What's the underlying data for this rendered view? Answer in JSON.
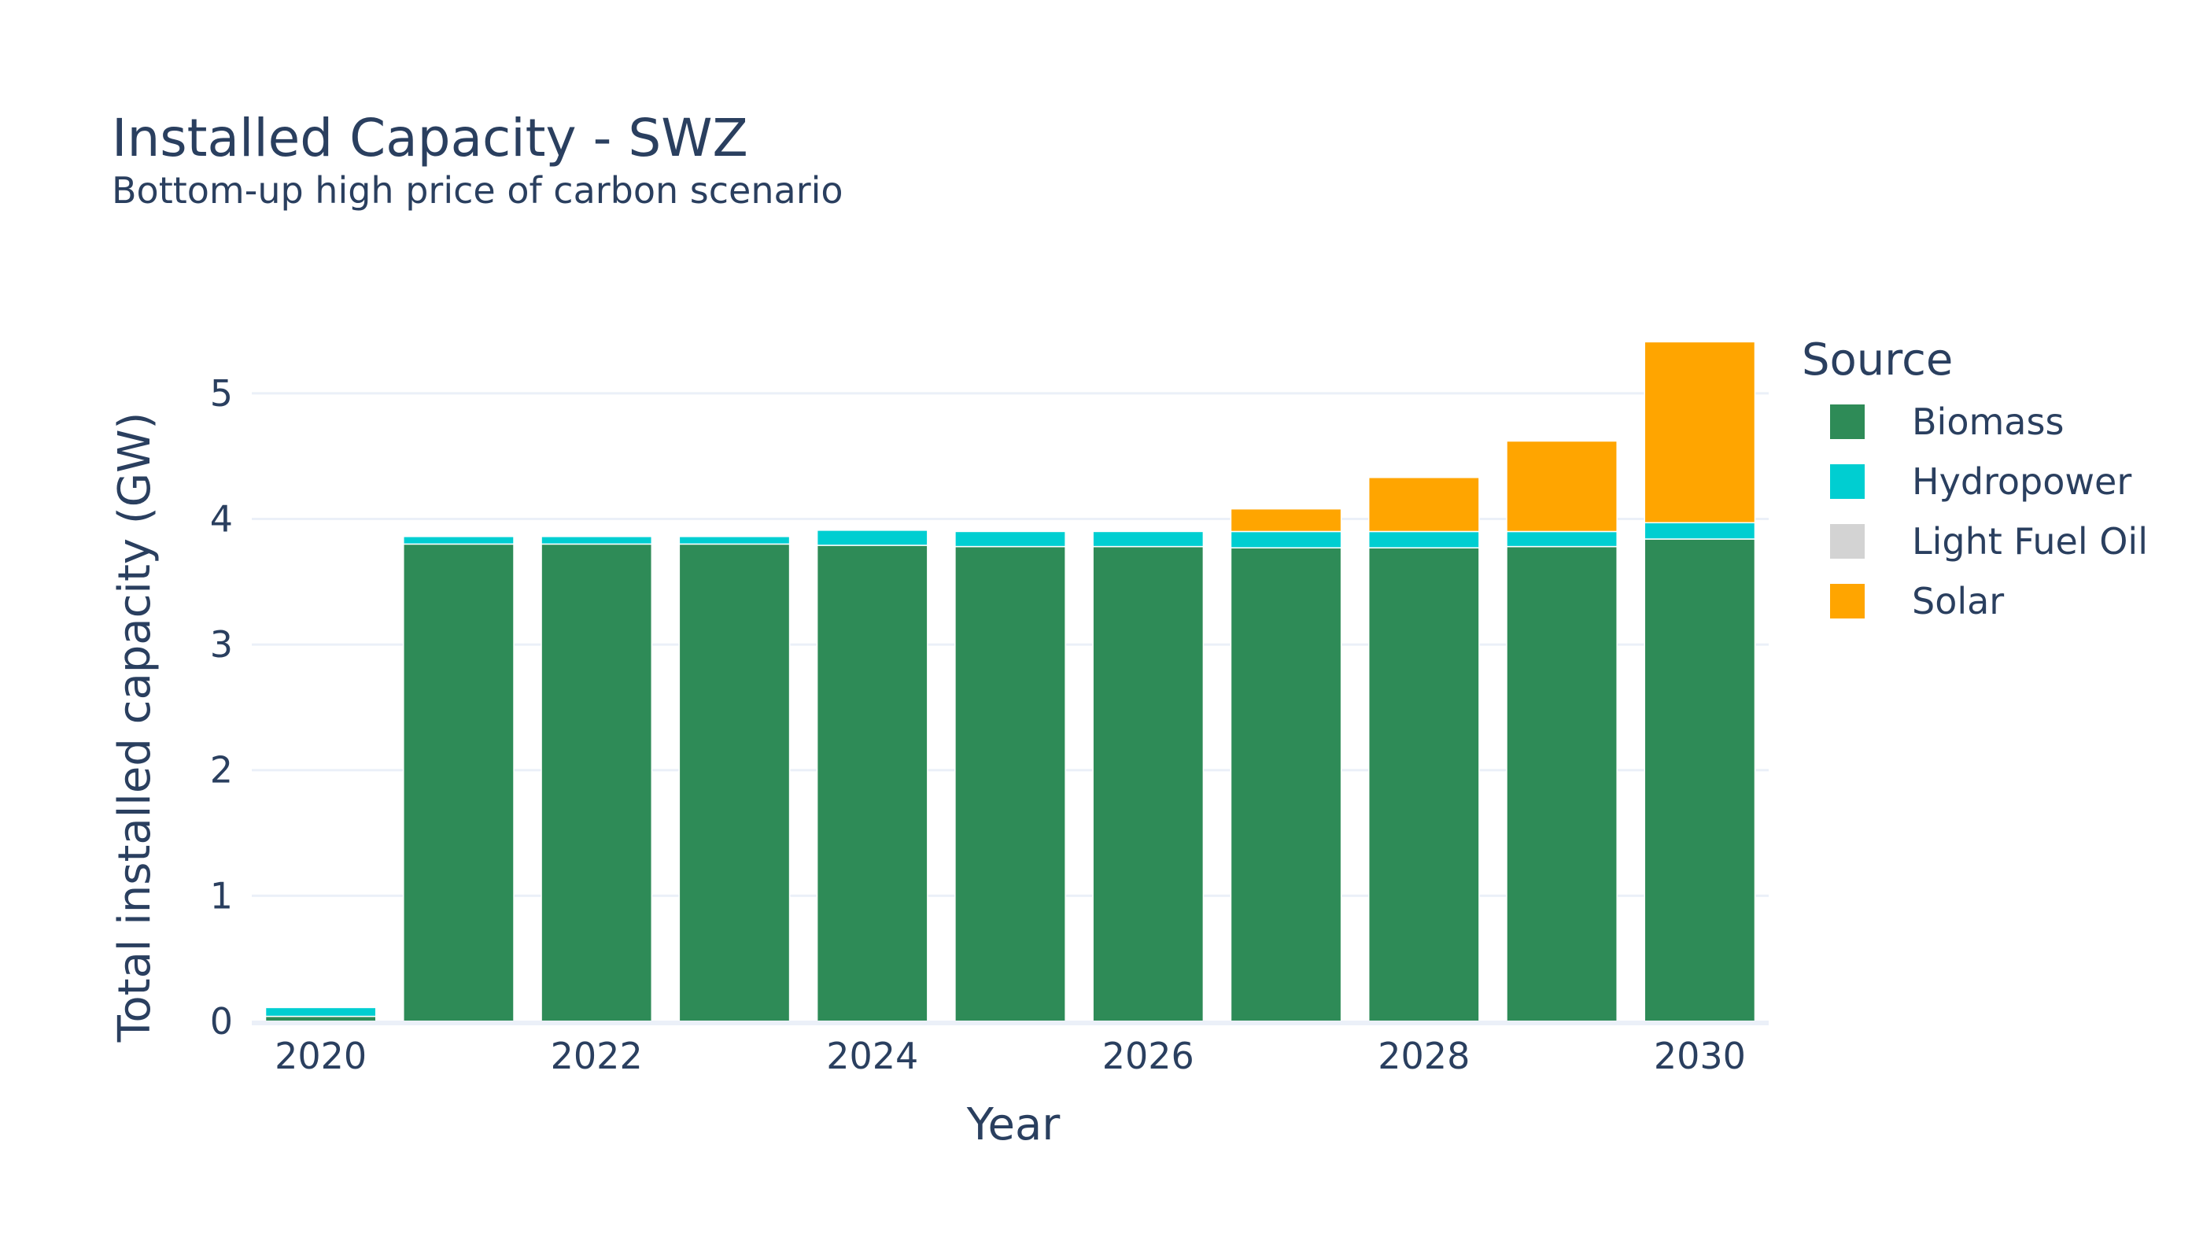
{
  "chart_data": {
    "type": "bar",
    "stacked": true,
    "title": "Installed Capacity - SWZ",
    "subtitle": "Bottom-up high price of carbon scenario",
    "xlabel": "Year",
    "ylabel": "Total installed capacity (GW)",
    "x": [
      2020,
      2021,
      2022,
      2023,
      2024,
      2025,
      2026,
      2027,
      2028,
      2029,
      2030
    ],
    "x_ticks": [
      "2020",
      "2022",
      "2024",
      "2026",
      "2028",
      "2030"
    ],
    "y_ticks": [
      "0",
      "1",
      "2",
      "3",
      "4",
      "5"
    ],
    "xlim": [
      2019.5,
      2030.5
    ],
    "ylim": [
      0,
      5.4
    ],
    "grid": true,
    "legend_title": "Source",
    "legend_placement": "right",
    "series": [
      {
        "name": "Biomass",
        "color": "#2e8b57",
        "values": [
          0.04,
          3.8,
          3.8,
          3.8,
          3.79,
          3.78,
          3.78,
          3.77,
          3.77,
          3.78,
          3.84
        ]
      },
      {
        "name": "Hydropower",
        "color": "#00ced1",
        "values": [
          0.07,
          0.06,
          0.06,
          0.06,
          0.12,
          0.12,
          0.12,
          0.13,
          0.13,
          0.12,
          0.13
        ]
      },
      {
        "name": "Light Fuel Oil",
        "color": "#d3d3d3",
        "values": [
          0,
          0,
          0,
          0,
          0,
          0,
          0,
          0,
          0,
          0,
          0
        ]
      },
      {
        "name": "Solar",
        "color": "#ffa500",
        "values": [
          0,
          0,
          0,
          0,
          0,
          0,
          0,
          0.18,
          0.43,
          0.72,
          1.44
        ]
      }
    ]
  }
}
